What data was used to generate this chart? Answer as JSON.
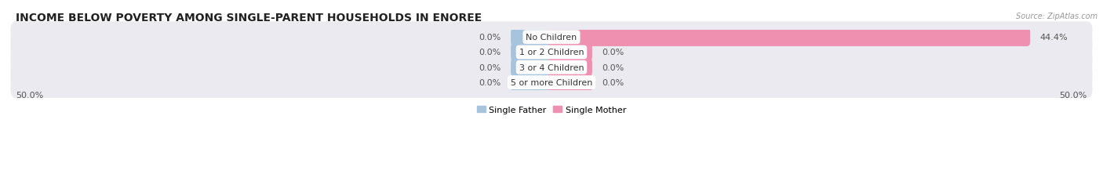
{
  "title": "INCOME BELOW POVERTY AMONG SINGLE-PARENT HOUSEHOLDS IN ENOREE",
  "source": "Source: ZipAtlas.com",
  "categories": [
    "No Children",
    "1 or 2 Children",
    "3 or 4 Children",
    "5 or more Children"
  ],
  "single_father": [
    0.0,
    0.0,
    0.0,
    0.0
  ],
  "single_mother": [
    44.4,
    0.0,
    0.0,
    0.0
  ],
  "father_color": "#a8c4dc",
  "mother_color": "#f090b0",
  "row_bg_color": "#eaeaf0",
  "xlim_abs": 50,
  "x_left_label": "50.0%",
  "x_right_label": "50.0%",
  "title_fontsize": 10,
  "label_fontsize": 8,
  "tick_fontsize": 8,
  "legend_father": "Single Father",
  "legend_mother": "Single Mother",
  "background_color": "#ffffff",
  "min_bar_width": 3.5
}
